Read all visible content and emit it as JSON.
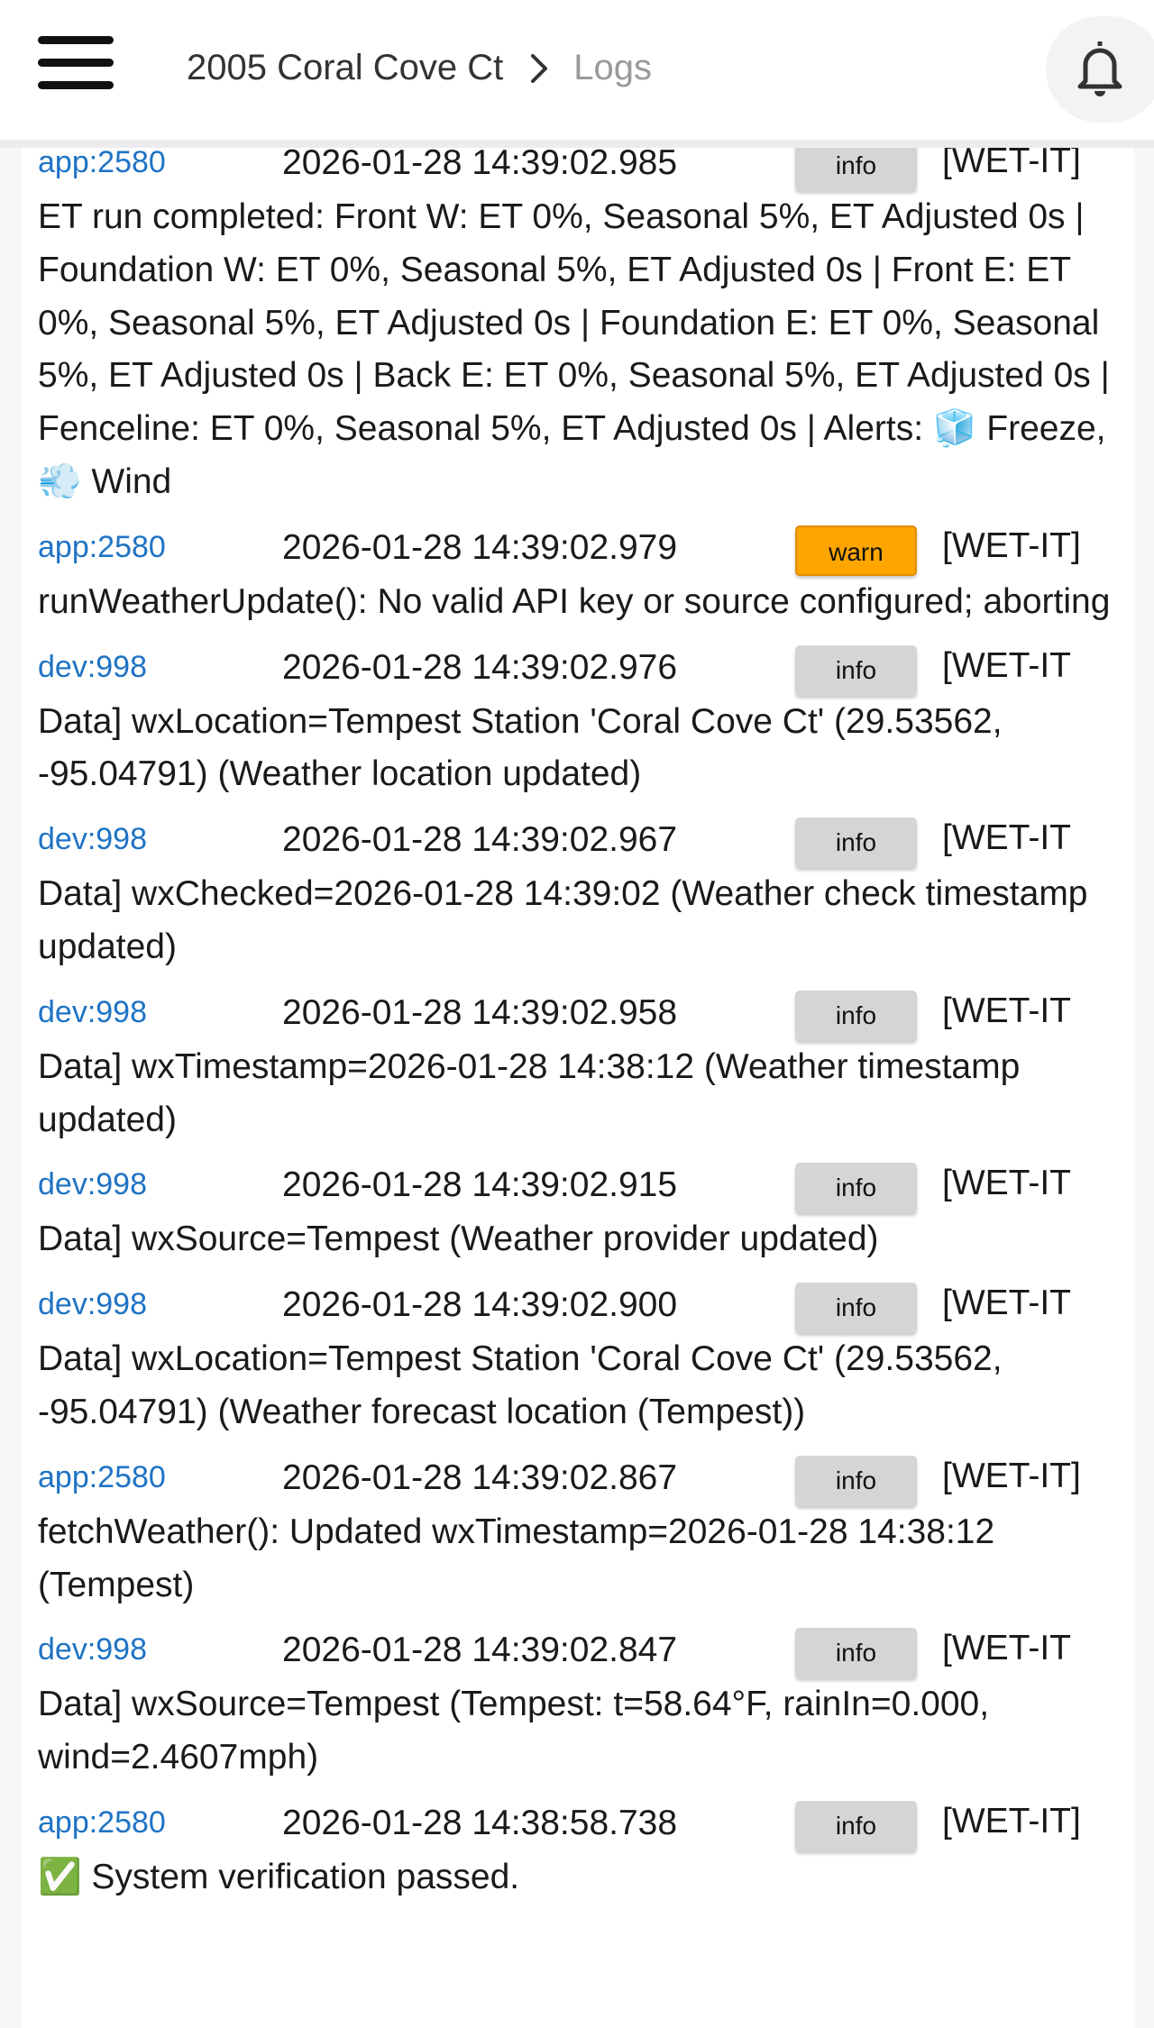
{
  "header": {
    "breadcrumb": [
      "2005 Coral Cove Ct",
      "Logs"
    ]
  },
  "colors": {
    "source_link": "#1f73c4",
    "info_badge": "#d5d5d5",
    "warn_badge": "#ffa500"
  },
  "icons": {
    "menu": "hamburger-icon",
    "separator": "chevron-right-icon",
    "notifications": "bell-icon"
  },
  "logs": [
    {
      "source": "app:2580",
      "timestamp": "2026-01-28 14:39:02.985",
      "level": "info",
      "message": "[WET-IT] ET run completed: Front W: ET 0%, Seasonal 5%, ET Adjusted 0s | Foundation W: ET 0%, Seasonal 5%, ET Adjusted 0s | Front E: ET 0%, Seasonal 5%, ET Adjusted 0s | Foundation E: ET 0%, Seasonal 5%, ET Adjusted 0s | Back E: ET 0%, Seasonal 5%, ET Adjusted 0s | Fenceline: ET 0%, Seasonal 5%, ET Adjusted 0s | Alerts: 🧊 Freeze, 💨 Wind"
    },
    {
      "source": "app:2580",
      "timestamp": "2026-01-28 14:39:02.979",
      "level": "warn",
      "message": "[WET-IT] runWeatherUpdate(): No valid API key or source configured; aborting"
    },
    {
      "source": "dev:998",
      "timestamp": "2026-01-28 14:39:02.976",
      "level": "info",
      "message": "[WET-IT Data] wxLocation=Tempest Station 'Coral Cove Ct' (29.53562, -95.04791) (Weather location updated)"
    },
    {
      "source": "dev:998",
      "timestamp": "2026-01-28 14:39:02.967",
      "level": "info",
      "message": "[WET-IT Data] wxChecked=2026-01-28 14:39:02 (Weather check timestamp updated)"
    },
    {
      "source": "dev:998",
      "timestamp": "2026-01-28 14:39:02.958",
      "level": "info",
      "message": "[WET-IT Data] wxTimestamp=2026-01-28 14:38:12 (Weather timestamp updated)"
    },
    {
      "source": "dev:998",
      "timestamp": "2026-01-28 14:39:02.915",
      "level": "info",
      "message": "[WET-IT Data] wxSource=Tempest (Weather provider updated)"
    },
    {
      "source": "dev:998",
      "timestamp": "2026-01-28 14:39:02.900",
      "level": "info",
      "message": "[WET-IT Data] wxLocation=Tempest Station 'Coral Cove Ct' (29.53562, -95.04791) (Weather forecast location (Tempest))"
    },
    {
      "source": "app:2580",
      "timestamp": "2026-01-28 14:39:02.867",
      "level": "info",
      "message": "[WET-IT] fetchWeather(): Updated wxTimestamp=2026-01-28 14:38:12 (Tempest)"
    },
    {
      "source": "dev:998",
      "timestamp": "2026-01-28 14:39:02.847",
      "level": "info",
      "message": "[WET-IT Data] wxSource=Tempest (Tempest: t=58.64°F, rainIn=0.000, wind=2.4607mph)"
    },
    {
      "source": "app:2580",
      "timestamp": "2026-01-28 14:38:58.738",
      "level": "info",
      "message": "[WET-IT] ✅ System verification passed."
    }
  ]
}
